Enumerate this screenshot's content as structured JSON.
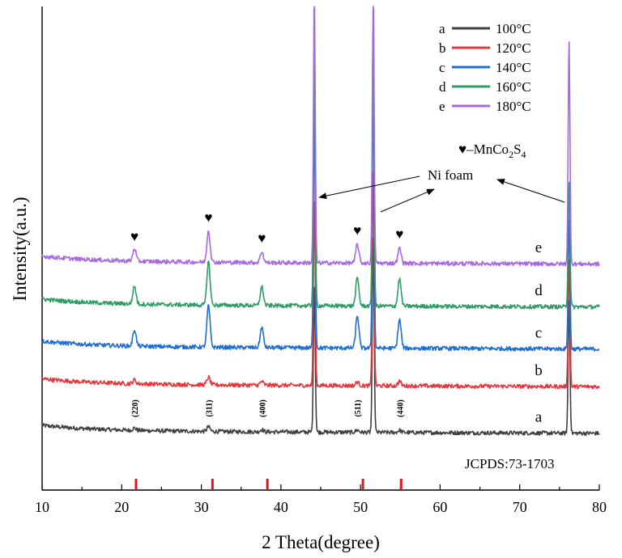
{
  "chart_data": {
    "type": "line",
    "title": "",
    "xlabel": "2 Theta(degree)",
    "ylabel": "Intensity(a.u.)",
    "xlim": [
      10,
      80
    ],
    "x_ticks": [
      "10",
      "20",
      "30",
      "40",
      "50",
      "60",
      "70",
      "80"
    ],
    "y_ticks_shown": false,
    "series": [
      {
        "id": "a",
        "name": "100°C",
        "color": "#404040",
        "base": 0.0,
        "peaks": [
          [
            21.6,
            0.03
          ],
          [
            30.9,
            0.06
          ],
          [
            37.6,
            0.03
          ],
          [
            44.2,
            2.0
          ],
          [
            49.6,
            0.03
          ],
          [
            51.6,
            2.6
          ],
          [
            54.9,
            0.03
          ],
          [
            76.2,
            1.8
          ]
        ]
      },
      {
        "id": "b",
        "name": "120°C",
        "color": "#e8363a",
        "base": 0.62,
        "peaks": [
          [
            21.6,
            0.05
          ],
          [
            30.9,
            0.1
          ],
          [
            37.6,
            0.05
          ],
          [
            44.2,
            2.5
          ],
          [
            49.6,
            0.05
          ],
          [
            51.6,
            2.9
          ],
          [
            54.9,
            0.06
          ],
          [
            76.2,
            1.7
          ]
        ]
      },
      {
        "id": "c",
        "name": "140°C",
        "color": "#1f6fd0",
        "base": 1.12,
        "peaks": [
          [
            21.6,
            0.22
          ],
          [
            30.9,
            0.55
          ],
          [
            37.6,
            0.27
          ],
          [
            44.2,
            3.2
          ],
          [
            49.6,
            0.43
          ],
          [
            51.6,
            3.5
          ],
          [
            54.9,
            0.38
          ],
          [
            76.2,
            1.75
          ]
        ]
      },
      {
        "id": "d",
        "name": "160°C",
        "color": "#2e9c64",
        "base": 1.68,
        "peaks": [
          [
            21.6,
            0.24
          ],
          [
            30.9,
            0.58
          ],
          [
            37.6,
            0.25
          ],
          [
            44.2,
            3.3
          ],
          [
            49.6,
            0.37
          ],
          [
            51.6,
            3.4
          ],
          [
            54.9,
            0.36
          ],
          [
            76.2,
            1.7
          ]
        ]
      },
      {
        "id": "e",
        "name": "180°C",
        "color": "#a66ae0",
        "base": 2.25,
        "peaks": [
          [
            21.6,
            0.17
          ],
          [
            30.9,
            0.42
          ],
          [
            37.6,
            0.15
          ],
          [
            44.2,
            3.6
          ],
          [
            49.6,
            0.25
          ],
          [
            51.6,
            3.7
          ],
          [
            54.9,
            0.2
          ],
          [
            76.2,
            2.98
          ]
        ]
      }
    ],
    "legend": {
      "placement": "top-right",
      "entries": [
        {
          "letter": "a",
          "label": "100°C"
        },
        {
          "letter": "b",
          "label": "120°C"
        },
        {
          "letter": "c",
          "label": "140°C"
        },
        {
          "letter": "d",
          "label": "160°C"
        },
        {
          "letter": "e",
          "label": "180°C"
        }
      ]
    },
    "phase_marker": {
      "symbol": "♥",
      "text": "–MnCo",
      "sub1": "2",
      "mid": "S",
      "sub2": "4"
    },
    "phase_peak_positions": [
      21.6,
      30.9,
      37.6,
      49.6,
      54.9
    ],
    "hkl_labels": [
      {
        "x": 21.6,
        "text": "(220)"
      },
      {
        "x": 30.9,
        "text": "(311)"
      },
      {
        "x": 37.6,
        "text": "(400)"
      },
      {
        "x": 49.6,
        "text": "(511)"
      },
      {
        "x": 54.9,
        "text": "(440)"
      }
    ],
    "ni_foam_label": "Ni foam",
    "ni_foam_peaks": [
      44.2,
      51.6,
      76.2
    ],
    "reference": {
      "label": "JCPDS:73-1703",
      "positions": [
        21.8,
        31.4,
        38.3,
        50.3,
        55.1
      ],
      "color": "#e0141c"
    }
  }
}
